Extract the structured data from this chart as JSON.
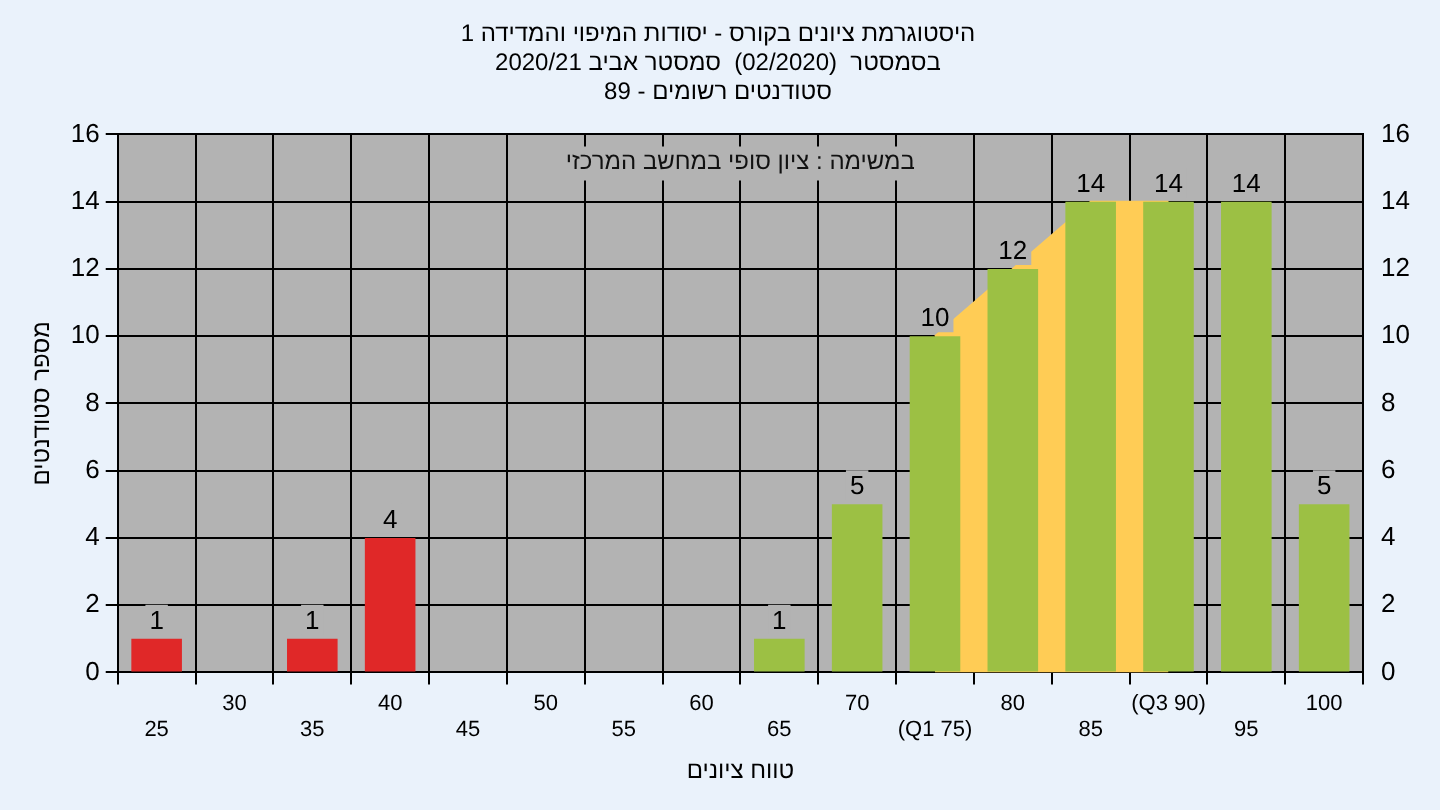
{
  "chart_data": {
    "type": "bar",
    "title": "היסטוגרמת ציונים בקורס - יסודות המיפוי והמדידה 1",
    "subtitle": "בסמסטר  (02/2020)  סמסטר אביב 2020/21\nסטודנטים רשומים - 89",
    "xlabel": "טווח ציונים",
    "ylabel": "מספר סטודנטים",
    "annotations": [
      "במשימה : ציון סופי במחשב המרכזי"
    ],
    "categories": [
      "25",
      "30",
      "35",
      "40",
      "45",
      "50",
      "55",
      "60",
      "65",
      "70",
      "(Q1 75)",
      "80",
      "85",
      "(Q3 90)",
      "95",
      "100"
    ],
    "series": [
      {
        "type": "area",
        "color": "#ffcc55",
        "values": [
          null,
          null,
          null,
          null,
          null,
          null,
          null,
          null,
          null,
          null,
          10,
          12,
          14,
          14,
          null,
          null
        ]
      },
      {
        "colors": [
          "#e02828",
          "#e02828",
          "#e02828",
          "#e02828",
          "#e02828",
          "#e02828",
          "#e02828",
          "#e02828",
          "#9cc044",
          "#9cc044",
          "#9cc044",
          "#9cc044",
          "#9cc044",
          "#9cc044",
          "#9cc044",
          "#9cc044"
        ],
        "values": [
          1,
          0,
          1,
          4,
          0,
          0,
          0,
          0,
          1,
          5,
          10,
          12,
          14,
          14,
          14,
          5
        ],
        "value_labels": [
          "1",
          null,
          "1",
          "4",
          null,
          null,
          null,
          null,
          "1",
          "5",
          "10",
          "12",
          "14",
          "14",
          "14",
          "5"
        ]
      }
    ],
    "ylim": [
      0,
      16
    ],
    "yticks": [
      0,
      2,
      4,
      6,
      8,
      10,
      12,
      14,
      16
    ],
    "y2lim": [
      0,
      16
    ],
    "y2ticks": [
      0,
      2,
      4,
      6,
      8,
      10,
      12,
      14,
      16
    ],
    "grid": true
  }
}
